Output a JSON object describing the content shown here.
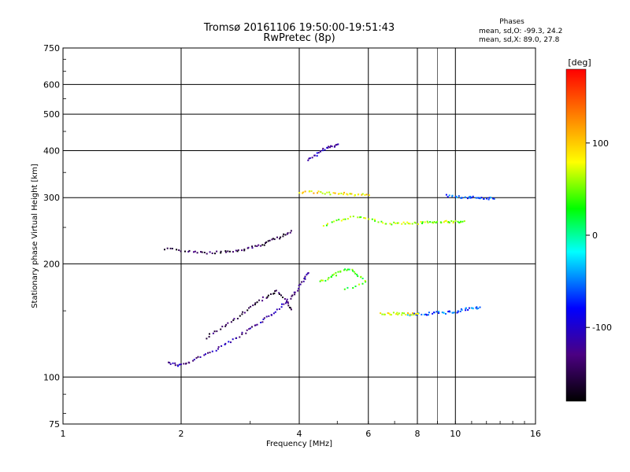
{
  "header": {
    "title_line1": "Tromsø 20161106 19:50:00-19:51:43",
    "title_line2": "RwPretec (8p)"
  },
  "phase_stats": {
    "heading": "Phases",
    "line_o": "mean, sd,O: -99.3, 24.2",
    "line_x": "mean, sd,X:  89.0, 27.8"
  },
  "colorbar": {
    "unit_label": "[deg]",
    "ticks": [
      {
        "value": 100,
        "label": "100"
      },
      {
        "value": 0,
        "label": "0"
      },
      {
        "value": -100,
        "label": "-100"
      }
    ],
    "range": [
      -180,
      180
    ],
    "colors": [
      "#000000",
      "#4b0082",
      "#0000ff",
      "#00ffff",
      "#00ff00",
      "#ffff00",
      "#ff8000",
      "#ff0000"
    ]
  },
  "chart_data": {
    "type": "scatter",
    "xlabel": "Frequency [MHz]",
    "ylabel": "Stationary phase Virtual Height [km]",
    "x_scale": "log",
    "y_scale": "log",
    "xlim": [
      1,
      16
    ],
    "ylim": [
      75,
      750
    ],
    "x_ticks": [
      {
        "value": 1,
        "label": "1"
      },
      {
        "value": 2,
        "label": "2"
      },
      {
        "value": 4,
        "label": "4"
      },
      {
        "value": 6,
        "label": "6"
      },
      {
        "value": 8,
        "label": "8"
      },
      {
        "value": 10,
        "label": "10"
      },
      {
        "value": 16,
        "label": "16"
      }
    ],
    "x_minor": [
      9
    ],
    "y_ticks": [
      {
        "value": 750,
        "label": "750"
      },
      {
        "value": 600,
        "label": "600"
      },
      {
        "value": 500,
        "label": "500"
      },
      {
        "value": 400,
        "label": "400"
      },
      {
        "value": 300,
        "label": "300"
      },
      {
        "value": 200,
        "label": "200"
      },
      {
        "value": 100,
        "label": "100"
      },
      {
        "value": 75,
        "label": "75"
      }
    ],
    "grid": true,
    "traces": [
      {
        "name": "lower-o-trace",
        "color_phase": -120,
        "points": [
          [
            1.85,
            110
          ],
          [
            1.95,
            108
          ],
          [
            2.05,
            109
          ],
          [
            2.2,
            113
          ],
          [
            2.4,
            118
          ],
          [
            2.6,
            123
          ],
          [
            2.8,
            129
          ],
          [
            3.0,
            135
          ],
          [
            3.2,
            141
          ],
          [
            3.4,
            148
          ],
          [
            3.6,
            156
          ],
          [
            3.8,
            164
          ],
          [
            3.95,
            172
          ],
          [
            4.1,
            182
          ],
          [
            4.2,
            190
          ]
        ]
      },
      {
        "name": "lower-upper-trace",
        "color_phase": -150,
        "points": [
          [
            2.3,
            128
          ],
          [
            2.5,
            135
          ],
          [
            2.7,
            142
          ],
          [
            2.9,
            150
          ],
          [
            3.1,
            158
          ],
          [
            3.3,
            165
          ],
          [
            3.5,
            170
          ],
          [
            3.7,
            160
          ],
          [
            3.8,
            152
          ]
        ]
      },
      {
        "name": "mid-o-trace",
        "color_phase": -150,
        "points": [
          [
            1.8,
            220
          ],
          [
            2.0,
            218
          ],
          [
            2.2,
            216
          ],
          [
            2.4,
            215
          ],
          [
            2.6,
            216
          ],
          [
            2.8,
            218
          ],
          [
            3.0,
            222
          ],
          [
            3.2,
            226
          ],
          [
            3.4,
            232
          ],
          [
            3.6,
            238
          ],
          [
            3.8,
            246
          ]
        ]
      },
      {
        "name": "mid-x-trace",
        "color_phase": 60,
        "points": [
          [
            4.6,
            255
          ],
          [
            5.0,
            262
          ],
          [
            5.5,
            268
          ],
          [
            6.0,
            264
          ],
          [
            6.5,
            258
          ],
          [
            7.0,
            257
          ],
          [
            7.5,
            258
          ],
          [
            8.0,
            258
          ],
          [
            8.5,
            259
          ],
          [
            9.0,
            259
          ],
          [
            9.5,
            260
          ],
          [
            10.0,
            260
          ],
          [
            10.5,
            261
          ]
        ]
      },
      {
        "name": "e-layer-o-trace",
        "color_phase": -60,
        "points": [
          [
            7.5,
            147
          ],
          [
            8.0,
            148
          ],
          [
            8.5,
            148
          ],
          [
            9.0,
            149
          ],
          [
            9.5,
            149
          ],
          [
            10.0,
            150
          ],
          [
            10.5,
            152
          ],
          [
            11.0,
            153
          ],
          [
            11.5,
            154
          ]
        ]
      },
      {
        "name": "e-layer-x-trace",
        "color_phase": 80,
        "points": [
          [
            6.4,
            148
          ],
          [
            6.8,
            148
          ],
          [
            7.2,
            148
          ],
          [
            7.6,
            148
          ],
          [
            8.0,
            148
          ]
        ]
      },
      {
        "name": "upper-band-trace",
        "color_phase": -60,
        "points": [
          [
            9.5,
            305
          ],
          [
            10.0,
            303
          ],
          [
            10.5,
            302
          ],
          [
            11.0,
            302
          ],
          [
            11.5,
            301
          ],
          [
            12.0,
            300
          ],
          [
            12.5,
            299
          ]
        ]
      },
      {
        "name": "spread-f-upper-x",
        "color_phase": 90,
        "points": [
          [
            4.0,
            310
          ],
          [
            4.3,
            312
          ],
          [
            4.6,
            310
          ],
          [
            5.0,
            308
          ],
          [
            5.3,
            309
          ],
          [
            5.6,
            307
          ],
          [
            6.0,
            306
          ]
        ]
      },
      {
        "name": "spread-f-cluster-o",
        "color_phase": -110,
        "points": [
          [
            4.2,
            380
          ],
          [
            4.4,
            392
          ],
          [
            4.6,
            405
          ],
          [
            4.8,
            412
          ],
          [
            5.0,
            418
          ]
        ]
      },
      {
        "name": "spread-f-cluster-mid",
        "color_phase": 40,
        "points": [
          [
            4.5,
            180
          ],
          [
            4.8,
            185
          ],
          [
            5.0,
            190
          ],
          [
            5.3,
            195
          ],
          [
            5.6,
            188
          ],
          [
            5.9,
            180
          ],
          [
            5.2,
            172
          ]
        ]
      }
    ]
  }
}
